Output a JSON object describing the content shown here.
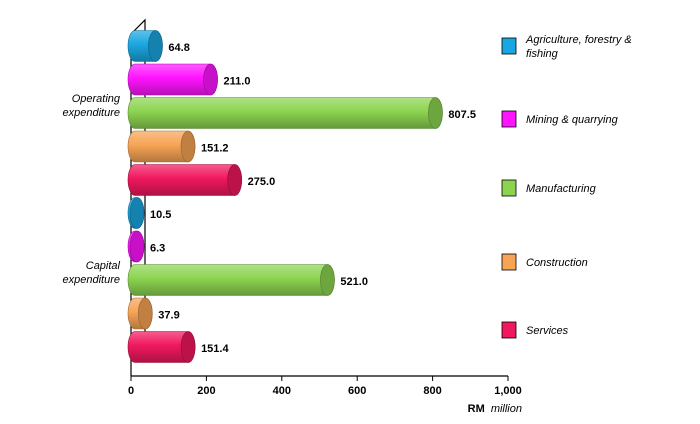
{
  "chart_data": {
    "type": "bar",
    "orientation": "horizontal",
    "style": "3d-cylinder",
    "categories": [
      "Operating expenditure",
      "Capital expenditure"
    ],
    "category_lines": [
      [
        "Operating",
        "expenditure"
      ],
      [
        "Capital",
        "expenditure"
      ]
    ],
    "series": [
      {
        "name": "Agriculture, forestry & fishing",
        "name_lines": [
          "Agriculture, forestry &",
          "fishing"
        ],
        "color": "#1aa6e0",
        "values": [
          64.8,
          10.5
        ],
        "labels": [
          "64.8",
          "10.5"
        ]
      },
      {
        "name": "Mining & quarrying",
        "name_lines": [
          "Mining & quarrying"
        ],
        "color": "#ff14ff",
        "values": [
          211.0,
          6.3
        ],
        "labels": [
          "211.0",
          "6.3"
        ]
      },
      {
        "name": "Manufacturing",
        "name_lines": [
          "Manufacturing"
        ],
        "color": "#8cd450",
        "values": [
          807.5,
          521.0
        ],
        "labels": [
          "807.5",
          "521.0"
        ]
      },
      {
        "name": "Construction",
        "name_lines": [
          "Construction"
        ],
        "color": "#f7a455",
        "values": [
          151.2,
          37.9
        ],
        "labels": [
          "151.2",
          "37.9"
        ]
      },
      {
        "name": "Services",
        "name_lines": [
          "Services"
        ],
        "color": "#f0185e",
        "values": [
          275.0,
          151.4
        ],
        "labels": [
          "275.0",
          "151.4"
        ]
      }
    ],
    "xlim": [
      0,
      1000
    ],
    "xticks": [
      0,
      200,
      400,
      600,
      800,
      1000
    ],
    "xtick_labels": [
      "0",
      "200",
      "400",
      "600",
      "800",
      "1,000"
    ],
    "xlabel_bold": "RM",
    "xlabel_rest": "million",
    "grid": false,
    "legend_position": "right"
  }
}
